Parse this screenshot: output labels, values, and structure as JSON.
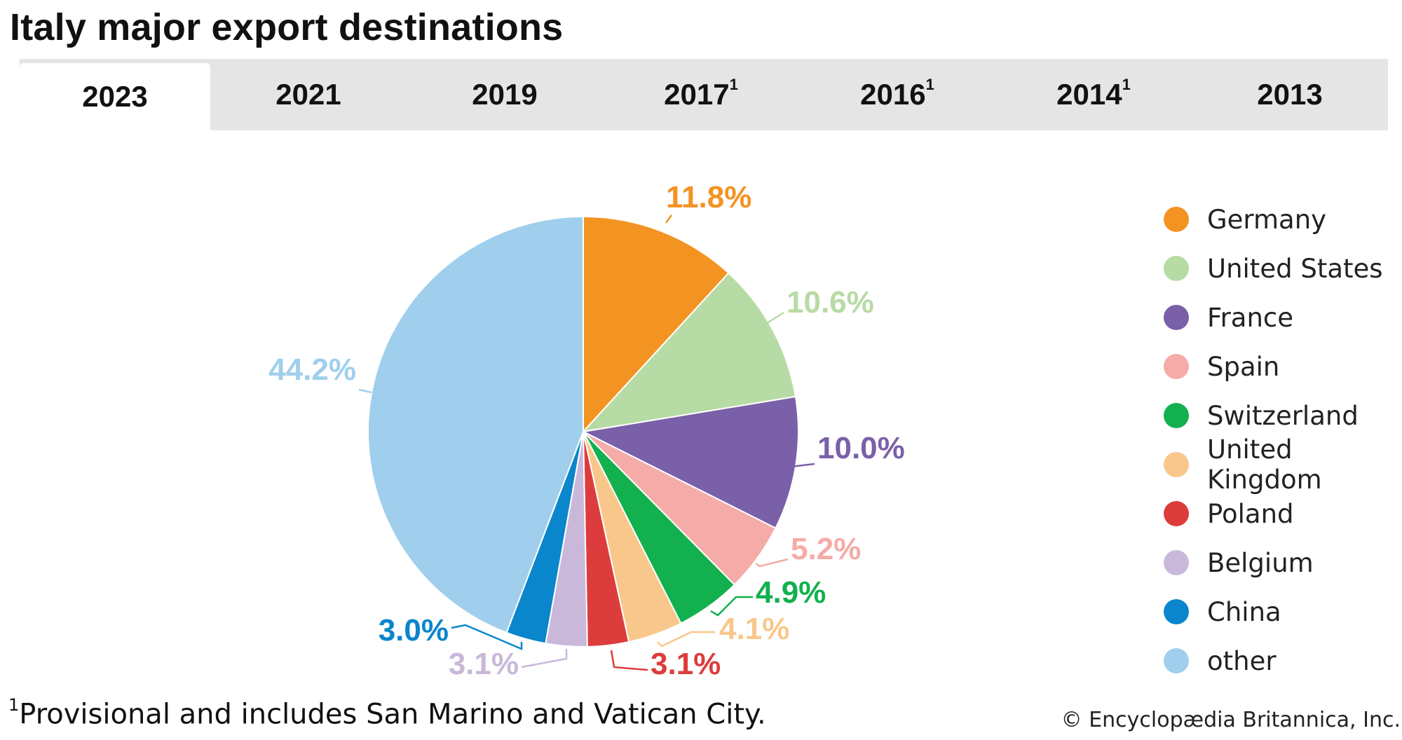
{
  "title": "Italy major export destinations",
  "tabs": [
    {
      "label": "2023",
      "note": "",
      "active": true
    },
    {
      "label": "2021",
      "note": ""
    },
    {
      "label": "2019",
      "note": ""
    },
    {
      "label": "2017",
      "note": "1"
    },
    {
      "label": "2016",
      "note": "1"
    },
    {
      "label": "2014",
      "note": "1"
    },
    {
      "label": "2013",
      "note": ""
    }
  ],
  "chart_data": {
    "type": "pie",
    "title": "Italy major export destinations",
    "year": "2023",
    "categories": [
      "Germany",
      "United States",
      "France",
      "Spain",
      "Switzerland",
      "United Kingdom",
      "Poland",
      "Belgium",
      "China",
      "other"
    ],
    "values": [
      11.8,
      10.6,
      10.0,
      5.2,
      4.9,
      4.1,
      3.1,
      3.1,
      3.0,
      44.2
    ],
    "labels": [
      "11.8%",
      "10.6%",
      "10.0%",
      "5.2%",
      "4.9%",
      "4.1%",
      "3.1%",
      "3.1%",
      "3.0%",
      "44.2%"
    ],
    "colors": [
      "#f39322",
      "#b7dba4",
      "#7a60a8",
      "#f5aba7",
      "#12b04e",
      "#f9c78c",
      "#dc3d3c",
      "#c9b8da",
      "#0a86cc",
      "#a0cfed"
    ],
    "legend_position": "right"
  },
  "legend": {
    "items": [
      {
        "label": "Germany",
        "color": "#f39322"
      },
      {
        "label": "United States",
        "color": "#b7dba4"
      },
      {
        "label": "France",
        "color": "#7a60a8"
      },
      {
        "label": "Spain",
        "color": "#f5aba7"
      },
      {
        "label": "Switzerland",
        "color": "#12b04e"
      },
      {
        "label": "United Kingdom",
        "color": "#f9c78c"
      },
      {
        "label": "Poland",
        "color": "#dc3d3c"
      },
      {
        "label": "Belgium",
        "color": "#c9b8da"
      },
      {
        "label": "China",
        "color": "#0a86cc"
      },
      {
        "label": "other",
        "color": "#a0cfed"
      }
    ]
  },
  "footnote": {
    "marker": "1",
    "text": "Provisional and includes San Marino and Vatican City."
  },
  "credit": "© Encyclopædia Britannica, Inc."
}
